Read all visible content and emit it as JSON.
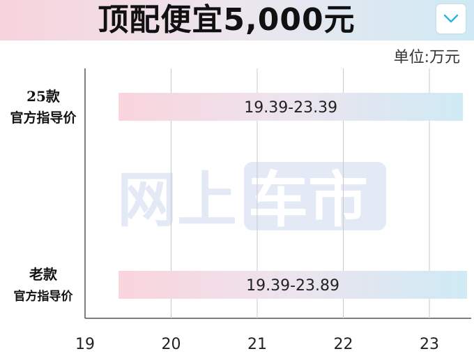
{
  "header": {
    "title": "顶配便宜5,000元",
    "dropdown_icon": "chevron-down-icon"
  },
  "unit_label": "单位:万元",
  "watermark": {
    "part1": "网上",
    "part2": "车市",
    "color": "#dfe7f3"
  },
  "colors": {
    "bar_gradient_start": "#f9d4dc",
    "bar_gradient_end": "#cfeaf4",
    "accent": "#2ab4e2"
  },
  "chart_data": {
    "type": "bar",
    "orientation": "horizontal",
    "title": "顶配便宜5,000元",
    "xlabel": "",
    "ylabel": "",
    "unit": "单位:万元",
    "xlim": [
      19,
      23.6
    ],
    "xticks": [
      "19",
      "20",
      "21",
      "22",
      "23"
    ],
    "grid": true,
    "categories": [
      {
        "line1": "25款",
        "line2": "官方指导价"
      },
      {
        "line1": "老款",
        "line2": "官方指导价"
      }
    ],
    "ranges": [
      {
        "start": 19.39,
        "end": 23.39,
        "label": "19.39-23.39"
      },
      {
        "start": 19.39,
        "end": 23.89,
        "label": "19.39-23.89"
      }
    ]
  }
}
